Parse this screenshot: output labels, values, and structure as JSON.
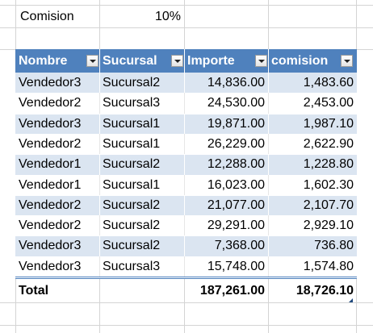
{
  "params": {
    "label": "Comision",
    "value": "10%"
  },
  "table": {
    "headers": [
      "Nombre",
      "Sucursal",
      "Importe",
      "comision"
    ],
    "rows": [
      [
        "Vendedor3",
        "Sucursal2",
        "14,836.00",
        "1,483.60"
      ],
      [
        "Vendedor2",
        "Sucursal3",
        "24,530.00",
        "2,453.00"
      ],
      [
        "Vendedor3",
        "Sucursal1",
        "19,871.00",
        "1,987.10"
      ],
      [
        "Vendedor2",
        "Sucursal1",
        "26,229.00",
        "2,622.90"
      ],
      [
        "Vendedor1",
        "Sucursal2",
        "12,288.00",
        "1,228.80"
      ],
      [
        "Vendedor1",
        "Sucursal1",
        "16,023.00",
        "1,602.30"
      ],
      [
        "Vendedor2",
        "Sucursal2",
        "21,077.00",
        "2,107.70"
      ],
      [
        "Vendedor2",
        "Sucursal2",
        "29,291.00",
        "2,929.10"
      ],
      [
        "Vendedor3",
        "Sucursal2",
        "7,368.00",
        "736.80"
      ],
      [
        "Vendedor3",
        "Sucursal3",
        "15,748.00",
        "1,574.80"
      ]
    ],
    "total": {
      "label": "Total",
      "importe": "187,261.00",
      "comision": "18,726.10"
    }
  },
  "colors": {
    "header": "#4f81bd",
    "band": "#dbe5f1",
    "grid": "#d4d4d4"
  }
}
